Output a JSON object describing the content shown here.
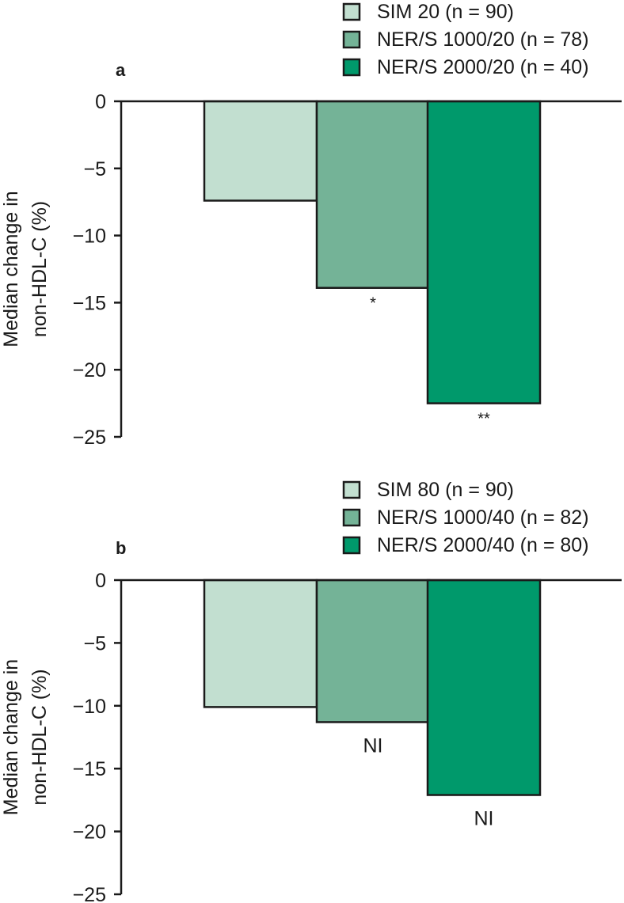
{
  "chart_data": [
    {
      "type": "bar",
      "panel_label": "a",
      "title": "",
      "xlabel": "",
      "ylabel": [
        "Median change in",
        "non-HDL-C (%)"
      ],
      "ylim": [
        -25,
        0
      ],
      "yticks": [
        0,
        -5,
        -10,
        -15,
        -20,
        -25
      ],
      "ytick_labels": [
        "0",
        "−5",
        "−10",
        "−15",
        "−20",
        "−25"
      ],
      "categories": [
        "SIM 20 (n = 90)",
        "NER/S 1000/20 (n = 78)",
        "NER/S 2000/20 (n = 40)"
      ],
      "values": [
        -7.4,
        -13.9,
        -22.5
      ],
      "colors": [
        "#c2dfd0",
        "#74b397",
        "#00996b"
      ],
      "annotations": [
        "",
        "*",
        "**"
      ],
      "legend": [
        "SIM 20 (n = 90)",
        "NER/S 1000/20 (n = 78)",
        "NER/S 2000/20 (n = 40)"
      ],
      "legend_position": "top-right",
      "grid": false
    },
    {
      "type": "bar",
      "panel_label": "b",
      "title": "",
      "xlabel": "",
      "ylabel": [
        "Median change in",
        "non-HDL-C (%)"
      ],
      "ylim": [
        -25,
        0
      ],
      "yticks": [
        0,
        -5,
        -10,
        -15,
        -20,
        -25
      ],
      "ytick_labels": [
        "0",
        "−5",
        "−10",
        "−15",
        "−20",
        "−25"
      ],
      "categories": [
        "SIM 80 (n = 90)",
        "NER/S 1000/40 (n = 82)",
        "NER/S 2000/40 (n = 80)"
      ],
      "values": [
        -10.1,
        -11.3,
        -17.1
      ],
      "colors": [
        "#c2dfd0",
        "#74b397",
        "#00996b"
      ],
      "annotations": [
        "",
        "NI",
        "NI"
      ],
      "legend": [
        "SIM 80 (n = 90)",
        "NER/S 1000/40 (n = 82)",
        "NER/S 2000/40 (n = 80)"
      ],
      "legend_position": "top-right",
      "grid": false
    }
  ]
}
